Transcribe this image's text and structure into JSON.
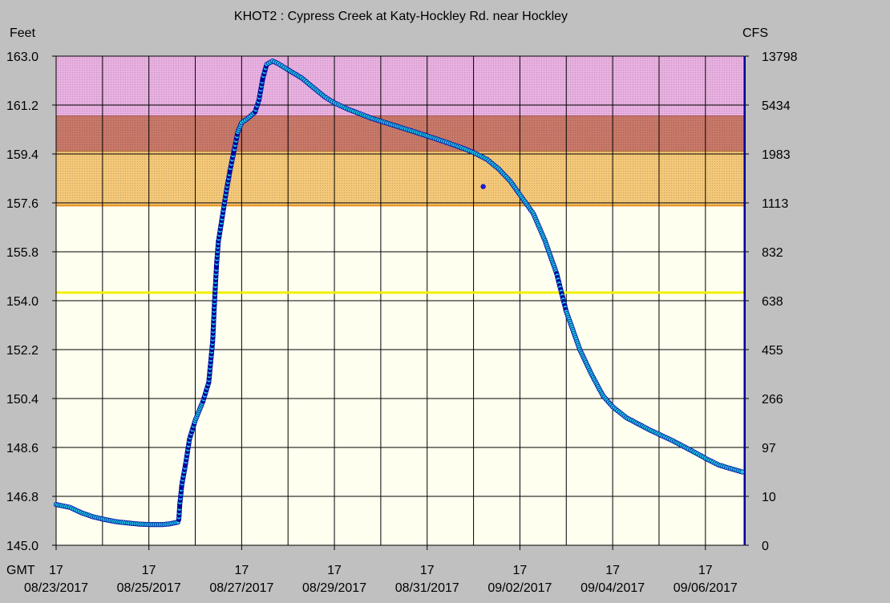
{
  "chart_data": {
    "type": "scatter",
    "title": "KHOT2  :  Cypress Creek at Katy-Hockley Rd. near Hockley",
    "left_axis_unit": "Feet",
    "right_axis_unit": "CFS",
    "ylim": [
      145.0,
      163.0
    ],
    "y_ticks": [
      "163.0",
      "161.2",
      "159.4",
      "157.6",
      "155.8",
      "154.0",
      "152.2",
      "150.4",
      "148.6",
      "146.8",
      "145.0"
    ],
    "y2_ticks": [
      "13798",
      "5434",
      "1983",
      "1113",
      "832",
      "638",
      "455",
      "266",
      "97",
      "10",
      "0"
    ],
    "x_axis_prefix": "GMT",
    "x_range": [
      "2017-08-23T17:00",
      "2017-09-07T13:00"
    ],
    "x_tick_hour": "17",
    "x_ticks": [
      "08/23/2017",
      "08/25/2017",
      "08/27/2017",
      "08/29/2017",
      "08/31/2017",
      "09/02/2017",
      "09/04/2017",
      "09/06/2017"
    ],
    "x_gridlines_every_days": 1,
    "grid": true,
    "stage_bands": [
      {
        "from": 160.8,
        "to": 163.0,
        "color": "#e8b0e0"
      },
      {
        "from": 159.5,
        "to": 160.8,
        "color": "#c87868"
      },
      {
        "from": 157.5,
        "to": 159.5,
        "color": "#f4c878"
      }
    ],
    "reference_lines": [
      {
        "y": 154.3,
        "color": "#f0f000"
      }
    ],
    "plot_background": "#fffff0",
    "series": [
      {
        "color": "#20c8d8",
        "edge_color": "#0000a0",
        "points": [
          [
            "2017-08-23T17:00",
            146.5
          ],
          [
            "2017-08-24T00:00",
            146.4
          ],
          [
            "2017-08-24T06:00",
            146.2
          ],
          [
            "2017-08-24T12:00",
            146.05
          ],
          [
            "2017-08-24T18:00",
            145.95
          ],
          [
            "2017-08-25T00:00",
            145.87
          ],
          [
            "2017-08-25T06:00",
            145.82
          ],
          [
            "2017-08-25T12:00",
            145.78
          ],
          [
            "2017-08-25T18:00",
            145.76
          ],
          [
            "2017-08-26T00:00",
            145.76
          ],
          [
            "2017-08-26T04:00",
            145.79
          ],
          [
            "2017-08-26T08:00",
            145.85
          ],
          [
            "2017-08-26T08:30",
            145.95
          ],
          [
            "2017-08-26T09:00",
            146.5
          ],
          [
            "2017-08-26T10:00",
            147.2
          ],
          [
            "2017-08-26T12:00",
            148.0
          ],
          [
            "2017-08-26T14:00",
            148.9
          ],
          [
            "2017-08-26T17:00",
            149.6
          ],
          [
            "2017-08-26T21:00",
            150.3
          ],
          [
            "2017-08-27T00:00",
            151.0
          ],
          [
            "2017-08-27T02:00",
            152.5
          ],
          [
            "2017-08-27T03:00",
            154.0
          ],
          [
            "2017-08-27T04:00",
            155.3
          ],
          [
            "2017-08-27T05:00",
            156.2
          ],
          [
            "2017-08-27T07:00",
            157.1
          ],
          [
            "2017-08-27T09:00",
            158.0
          ],
          [
            "2017-08-27T11:00",
            158.8
          ],
          [
            "2017-08-27T13:00",
            159.5
          ],
          [
            "2017-08-27T15:00",
            160.2
          ],
          [
            "2017-08-27T17:00",
            160.55
          ],
          [
            "2017-08-27T20:00",
            160.7
          ],
          [
            "2017-08-28T00:00",
            160.95
          ],
          [
            "2017-08-28T02:00",
            161.4
          ],
          [
            "2017-08-28T04:00",
            162.2
          ],
          [
            "2017-08-28T06:00",
            162.7
          ],
          [
            "2017-08-28T09:00",
            162.82
          ],
          [
            "2017-08-28T12:00",
            162.72
          ],
          [
            "2017-08-28T17:00",
            162.5
          ],
          [
            "2017-08-29T00:00",
            162.2
          ],
          [
            "2017-08-29T06:00",
            161.85
          ],
          [
            "2017-08-29T12:00",
            161.5
          ],
          [
            "2017-08-29T17:00",
            161.28
          ],
          [
            "2017-08-30T00:00",
            161.05
          ],
          [
            "2017-08-30T12:00",
            160.72
          ],
          [
            "2017-08-31T00:00",
            160.45
          ],
          [
            "2017-08-31T12:00",
            160.18
          ],
          [
            "2017-09-01T00:00",
            159.9
          ],
          [
            "2017-09-01T12:00",
            159.6
          ],
          [
            "2017-09-01T17:00",
            159.45
          ],
          [
            "2017-09-02T00:00",
            159.2
          ],
          [
            "2017-09-02T06:00",
            158.85
          ],
          [
            "2017-09-02T12:00",
            158.4
          ],
          [
            "2017-09-02T17:00",
            157.9
          ],
          [
            "2017-09-03T00:00",
            157.2
          ],
          [
            "2017-09-03T06:00",
            156.2
          ],
          [
            "2017-09-03T12:00",
            155.0
          ],
          [
            "2017-09-03T17:00",
            153.6
          ],
          [
            "2017-09-04T00:00",
            152.2
          ],
          [
            "2017-09-04T06:00",
            151.3
          ],
          [
            "2017-09-04T12:00",
            150.5
          ],
          [
            "2017-09-04T17:00",
            150.1
          ],
          [
            "2017-09-05T00:00",
            149.7
          ],
          [
            "2017-09-05T12:00",
            149.25
          ],
          [
            "2017-09-06T00:00",
            148.85
          ],
          [
            "2017-09-06T12:00",
            148.4
          ],
          [
            "2017-09-06T17:00",
            148.2
          ],
          [
            "2017-09-07T00:00",
            147.95
          ],
          [
            "2017-09-07T12:00",
            147.7
          ]
        ]
      },
      {
        "color": "#2020e0",
        "edge_color": "#0000a0",
        "points": [
          [
            "2017-09-01T22:00",
            158.2
          ]
        ]
      }
    ]
  }
}
